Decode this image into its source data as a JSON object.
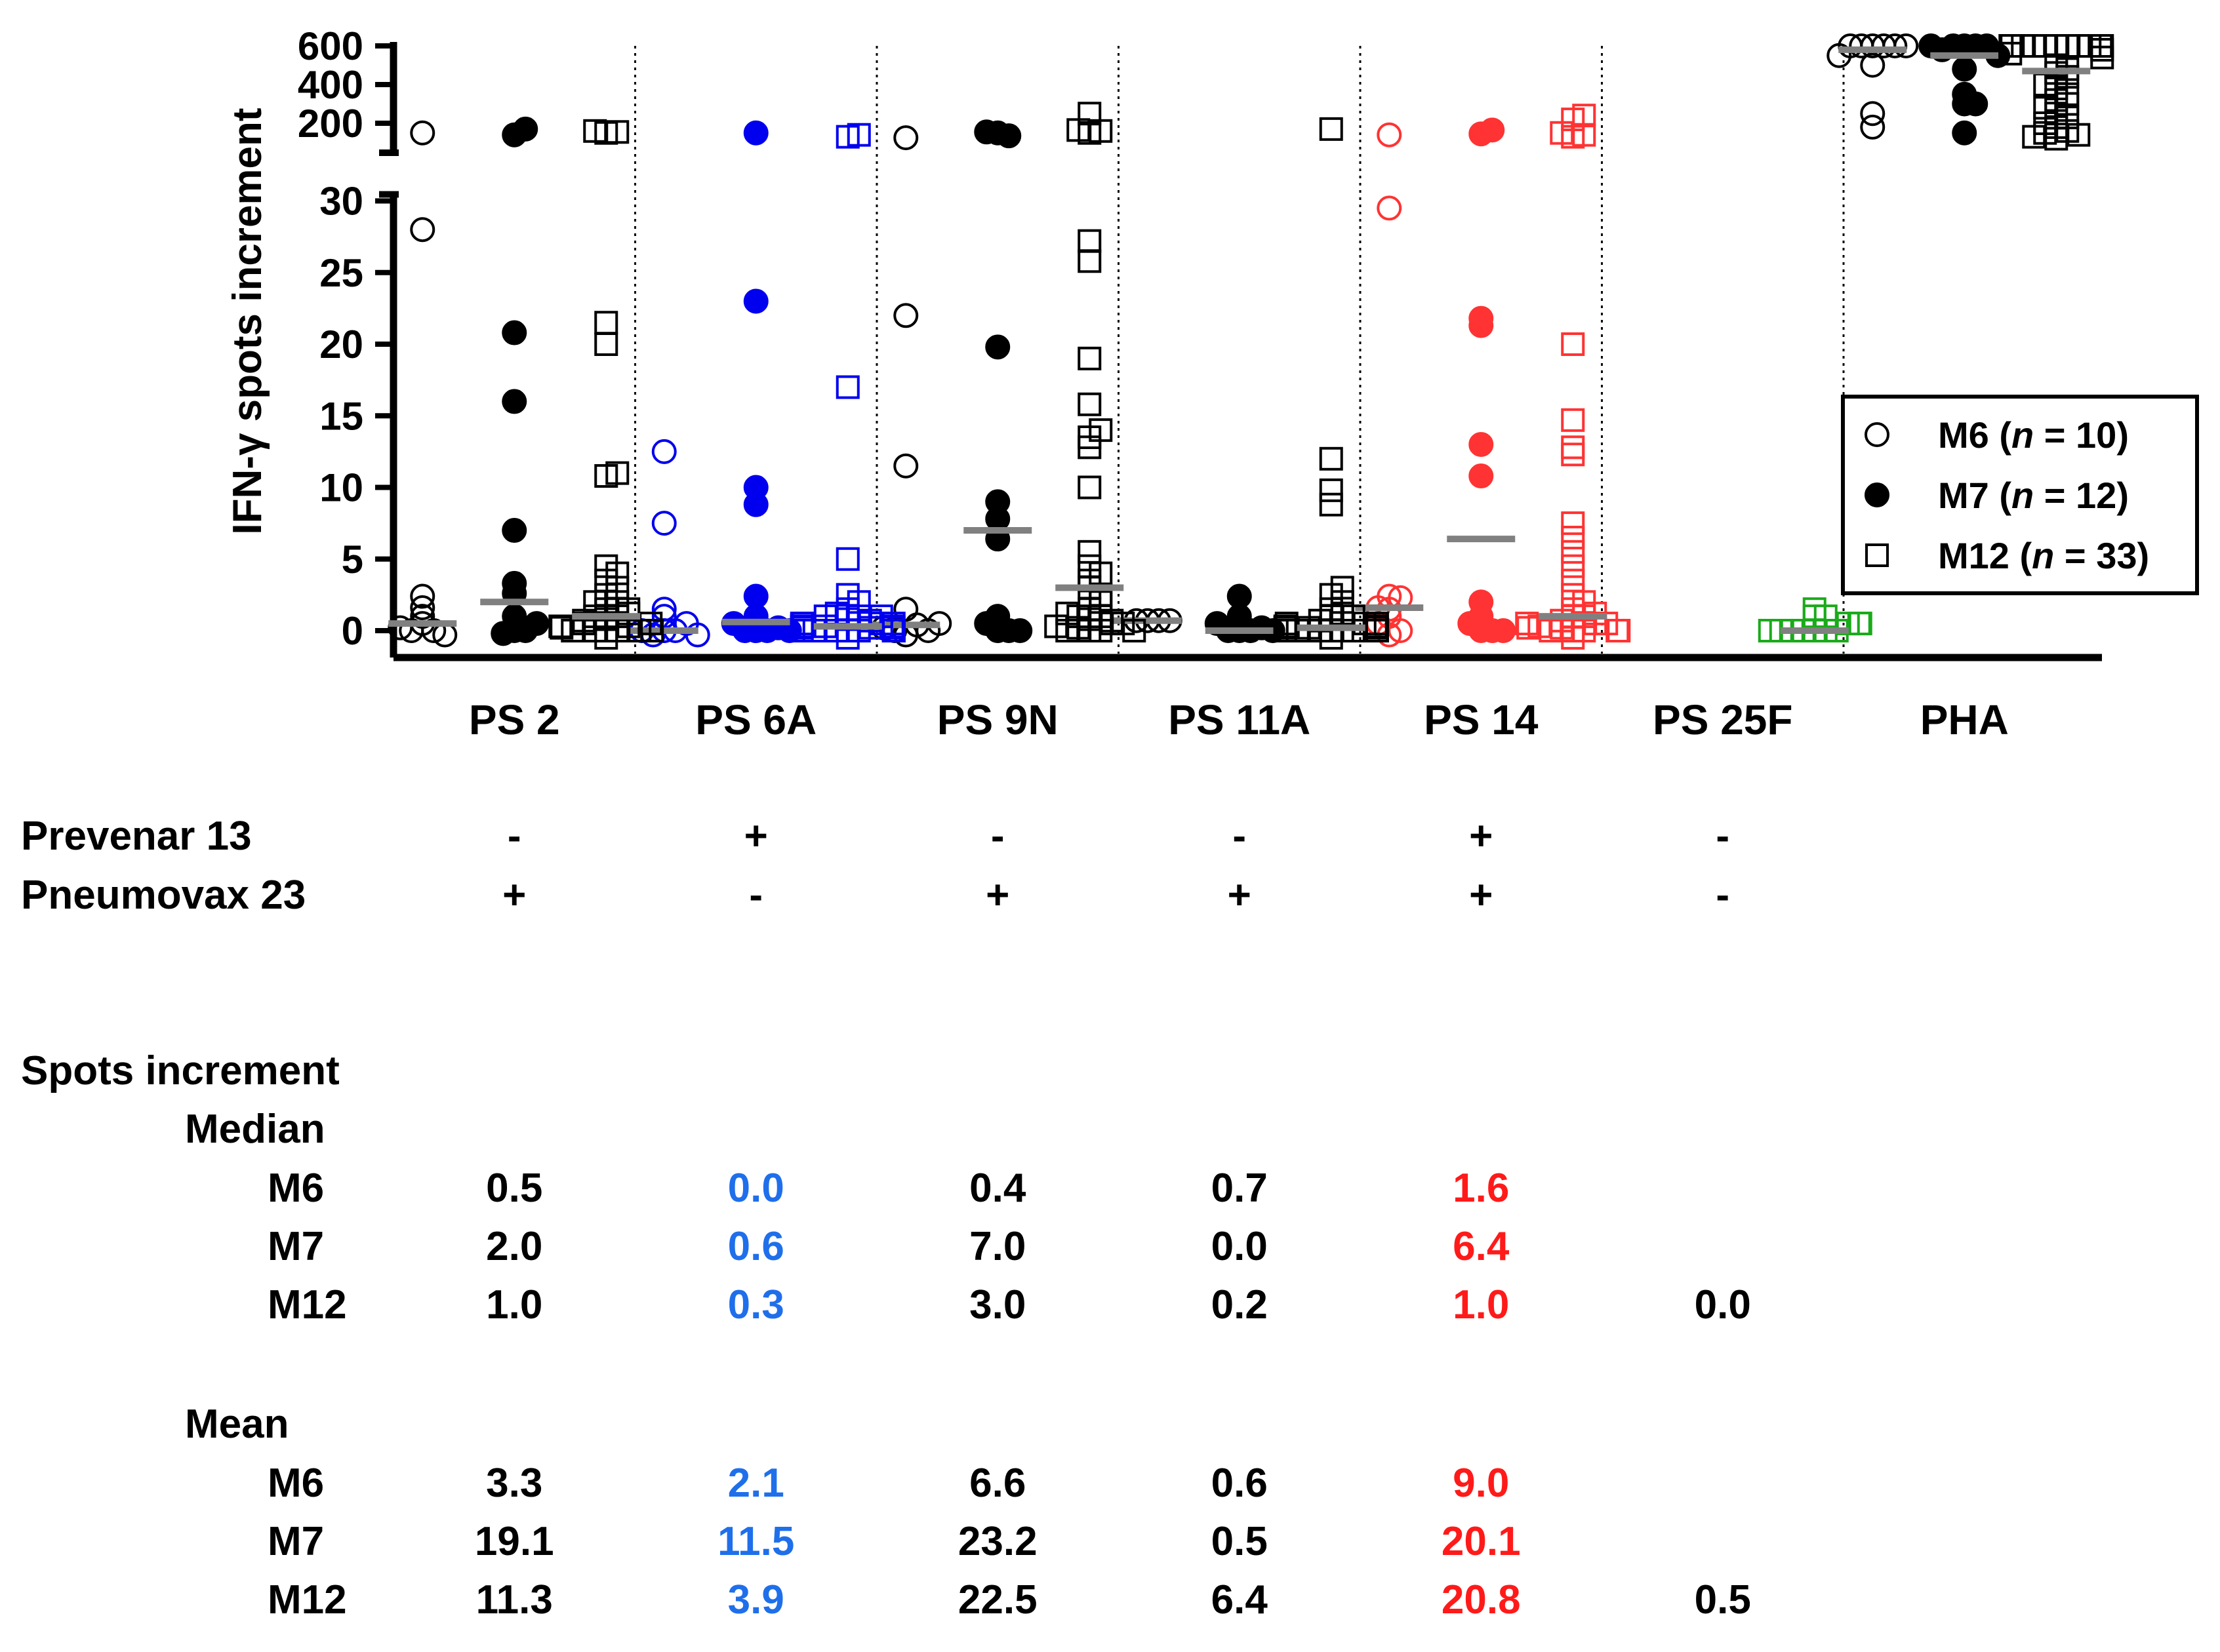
{
  "chart_data": {
    "type": "scatter",
    "ylabel": "IFN-γ spots increment",
    "y_lower_ticks": [
      "0",
      "5",
      "10",
      "15",
      "20",
      "25",
      "30"
    ],
    "y_upper_ticks": [
      "200",
      "400",
      "600"
    ],
    "ylim_lower": [
      0,
      30
    ],
    "ylim_upper": [
      100,
      600
    ],
    "categories": [
      "PS 2",
      "PS 6A",
      "PS 9N",
      "PS 11A",
      "PS 14",
      "PS 25F",
      "PHA"
    ],
    "category_colors": [
      "#000000",
      "#0000ee",
      "#000000",
      "#000000",
      "#ff3333",
      "#1aaa1a",
      "#000000"
    ],
    "legend": {
      "position": "right",
      "entries": [
        {
          "marker": "open-circle",
          "label": "M6",
          "n": "10"
        },
        {
          "marker": "filled-circle",
          "label": "M7",
          "n": "12"
        },
        {
          "marker": "open-square",
          "label": "M12",
          "n": "33"
        }
      ]
    },
    "series": [
      {
        "name": "M6",
        "marker": "open-circle",
        "points": [
          [
            0,
            [
              1.6,
              2.4,
              1.0,
              0.5,
              0.0,
              0.0,
              -0.3,
              0.2,
              28.0,
              150
            ]
          ],
          [
            1,
            [
              0.0,
              0.0,
              -0.3,
              1.5,
              1.0,
              0.5,
              0.0,
              7.5,
              12.5,
              -0.3
            ]
          ],
          [
            2,
            [
              -0.3,
              0.4,
              1.5,
              0.0,
              0.0,
              11.5,
              22.0,
              0.2,
              0.5,
              125
            ]
          ],
          [
            3,
            [
              0.7,
              0.7,
              0.7,
              0.7
            ]
          ],
          [
            4,
            [
              -0.3,
              0.0,
              1.5,
              2.3,
              2.4,
              1.6,
              29.5,
              140,
              0.5,
              1.0
            ]
          ],
          [
            6,
            [
              600,
              600,
              600,
              600,
              600,
              600,
              550,
              500,
              250,
              180
            ]
          ]
        ],
        "median": [
          0.5,
          0.0,
          0.4,
          0.7,
          1.6,
          null,
          580
        ]
      },
      {
        "name": "M7",
        "marker": "filled-circle",
        "points": [
          [
            0,
            [
              0.0,
              0.0,
              -0.2,
              0.5,
              1.0,
              2.6,
              3.3,
              7.0,
              16.0,
              20.8,
              140,
              170
            ]
          ],
          [
            1,
            [
              0.0,
              0.0,
              0.0,
              0.2,
              0.5,
              1.0,
              2.4,
              8.8,
              10.0,
              23.0,
              150,
              0.0
            ]
          ],
          [
            2,
            [
              0.0,
              0.0,
              0.5,
              1.0,
              6.4,
              7.8,
              9.0,
              19.8,
              150,
              135,
              155,
              0.0
            ]
          ],
          [
            3,
            [
              0.0,
              0.0,
              0.0,
              0.2,
              0.5,
              1.0,
              2.4,
              0.0
            ]
          ],
          [
            4,
            [
              0.0,
              0.0,
              0.5,
              1.0,
              2.0,
              10.8,
              13.0,
              21.3,
              21.8,
              145,
              165,
              0.0
            ]
          ],
          [
            6,
            [
              600,
              600,
              600,
              600,
              580,
              550,
              480,
              350,
              300,
              300,
              150,
              600
            ]
          ]
        ],
        "median": [
          2.0,
          0.6,
          7.0,
          0.0,
          6.4,
          null,
          550
        ]
      },
      {
        "name": "M12",
        "marker": "open-square",
        "points": [
          [
            0,
            [
              -0.5,
              0.0,
              0.0,
              0.0,
              0.3,
              0.5,
              0.8,
              1.0,
              1.5,
              2.0,
              2.5,
              3.0,
              3.5,
              4.0,
              4.5,
              10.8,
              11.0,
              20.0,
              21.5,
              150,
              155,
              160,
              0.0,
              0.0,
              0.5,
              1.0,
              1.2,
              2.0,
              0.2,
              0.7,
              1.5,
              0.0,
              0.3
            ]
          ],
          [
            1,
            [
              -0.5,
              0.0,
              0.0,
              0.0,
              0.2,
              0.3,
              0.5,
              0.8,
              1.0,
              1.2,
              1.5,
              2.0,
              2.5,
              5.0,
              17.0,
              130,
              140,
              0.0,
              0.3,
              0.5,
              0.0,
              0.2,
              0.7,
              1.0,
              0.0,
              0.3,
              0.5,
              1.0,
              0.0,
              0.2,
              0.5,
              0.0,
              0.3
            ]
          ],
          [
            2,
            [
              0.0,
              0.0,
              0.2,
              0.5,
              0.8,
              1.0,
              1.5,
              2.0,
              3.0,
              3.5,
              4.0,
              4.5,
              5.5,
              10.0,
              12.8,
              13.5,
              14.0,
              15.8,
              19.0,
              25.8,
              27.2,
              150,
              160,
              165,
              250,
              0.0,
              0.5,
              1.0,
              0.3,
              0.0,
              0.7,
              1.2,
              2.5
            ]
          ],
          [
            3,
            [
              -0.5,
              0.0,
              0.0,
              0.0,
              0.0,
              0.2,
              0.5,
              1.0,
              1.2,
              1.5,
              2.0,
              2.5,
              3.0,
              8.8,
              9.8,
              12.0,
              170,
              0.0,
              0.2,
              0.5,
              0.0,
              0.3,
              0.7,
              0.0,
              0.2,
              0.5,
              1.0,
              0.0,
              0.3,
              0.0,
              0.5,
              0.2,
              0.0
            ]
          ],
          [
            4,
            [
              -0.5,
              0.0,
              0.0,
              0.2,
              0.5,
              1.0,
              1.5,
              2.0,
              2.5,
              3.5,
              4.5,
              5.5,
              6.5,
              7.5,
              12.3,
              12.8,
              14.7,
              20.0,
              130,
              140,
              150,
              220,
              240,
              0.0,
              0.5,
              1.0,
              0.3,
              0.0,
              0.7,
              1.2,
              0.2,
              0.0,
              0.5
            ]
          ],
          [
            5,
            [
              0.0,
              0.0,
              0.0,
              0.0,
              0.0,
              0.5,
              1.0,
              1.5,
              0.0,
              0.5,
              1.0,
              0.0,
              0.5
            ]
          ],
          [
            6,
            [
              600,
              600,
              600,
              600,
              600,
              600,
              600,
              600,
              600,
              580,
              560,
              540,
              500,
              480,
              460,
              440,
              400,
              380,
              350,
              320,
              300,
              280,
              250,
              230,
              200,
              180,
              160,
              150,
              140,
              130,
              120,
              600,
              600
            ]
          ]
        ],
        "median": [
          1.0,
          0.3,
          3.0,
          0.2,
          1.0,
          0.0,
          470
        ]
      }
    ]
  },
  "vaccines": [
    {
      "label": "Prevenar 13",
      "values": [
        "-",
        "+",
        "-",
        "-",
        "+",
        "-"
      ]
    },
    {
      "label": "Pneumovax 23",
      "values": [
        "+",
        "-",
        "+",
        "+",
        "+",
        "-"
      ]
    }
  ],
  "summary": {
    "title": "Spots increment",
    "median_label": "Median",
    "mean_label": "Mean",
    "row_labels": [
      "M6",
      "M7",
      "M12"
    ],
    "column_colors": [
      "#000000",
      "#1f6feb",
      "#000000",
      "#000000",
      "#ff1a1a",
      "#000000"
    ],
    "median": [
      [
        "0.5",
        "0.0",
        "0.4",
        "0.7",
        "1.6",
        ""
      ],
      [
        "2.0",
        "0.6",
        "7.0",
        "0.0",
        "6.4",
        ""
      ],
      [
        "1.0",
        "0.3",
        "3.0",
        "0.2",
        "1.0",
        "0.0"
      ]
    ],
    "mean": [
      [
        "3.3",
        "2.1",
        "6.6",
        "0.6",
        "9.0",
        ""
      ],
      [
        "19.1",
        "11.5",
        "23.2",
        "0.5",
        "20.1",
        ""
      ],
      [
        "11.3",
        "3.9",
        "22.5",
        "6.4",
        "20.8",
        "0.5"
      ]
    ]
  }
}
